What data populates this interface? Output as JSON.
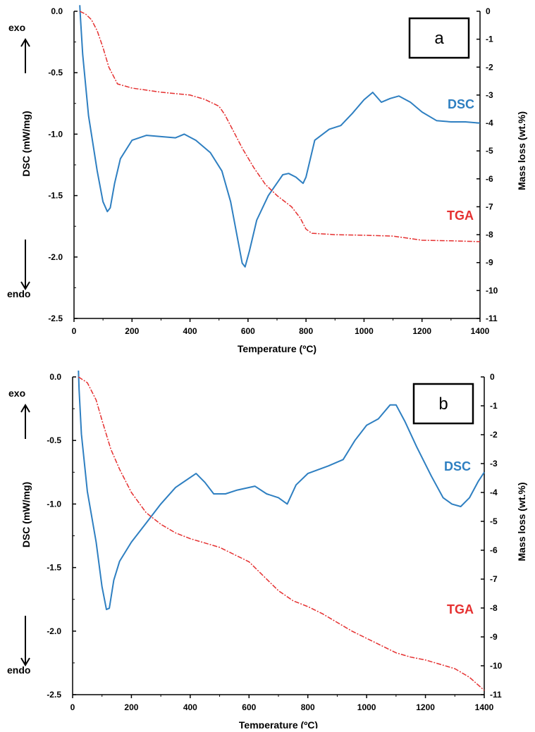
{
  "colors": {
    "dsc": "#2E7FC1",
    "tga": "#E53030",
    "axis": "#000000"
  },
  "chart_data": [
    {
      "type": "line",
      "panel_label": "a",
      "xlabel": "Temperature (ºC)",
      "ylabel_left": "DSC (mW/mg)",
      "ylabel_right": "Mass loss (wt.%)",
      "exo_label": "exo",
      "endo_label": "endo",
      "xlim": [
        0,
        1400
      ],
      "ylim_left": [
        -2.5,
        0.0
      ],
      "ylim_right": [
        -11,
        0
      ],
      "x_ticks": [
        "0",
        "200",
        "400",
        "600",
        "800",
        "1000",
        "1200",
        "1400"
      ],
      "y_left_ticks": [
        "0.0",
        "-0.5",
        "-1.0",
        "-1.5",
        "-2.0",
        "-2.5"
      ],
      "y_right_ticks": [
        "0",
        "-1",
        "-2",
        "-3",
        "-4",
        "-5",
        "-6",
        "-7",
        "-8",
        "-9",
        "-10",
        "-11"
      ],
      "grid": false,
      "series": [
        {
          "name": "DSC",
          "axis": "left",
          "x": [
            20,
            22,
            30,
            50,
            80,
            100,
            115,
            125,
            140,
            160,
            200,
            250,
            300,
            350,
            380,
            420,
            470,
            510,
            540,
            560,
            580,
            590,
            605,
            630,
            670,
            720,
            740,
            765,
            790,
            800,
            830,
            880,
            920,
            960,
            1000,
            1030,
            1060,
            1090,
            1120,
            1160,
            1200,
            1250,
            1300,
            1350,
            1400
          ],
          "y": [
            0.05,
            -0.05,
            -0.35,
            -0.85,
            -1.3,
            -1.55,
            -1.63,
            -1.6,
            -1.4,
            -1.2,
            -1.05,
            -1.01,
            -1.02,
            -1.03,
            -1.0,
            -1.05,
            -1.15,
            -1.3,
            -1.55,
            -1.8,
            -2.05,
            -2.08,
            -1.95,
            -1.7,
            -1.5,
            -1.33,
            -1.32,
            -1.35,
            -1.4,
            -1.35,
            -1.05,
            -0.96,
            -0.93,
            -0.83,
            -0.72,
            -0.66,
            -0.74,
            -0.71,
            -0.69,
            -0.74,
            -0.82,
            -0.89,
            -0.9,
            -0.9,
            -0.91
          ]
        },
        {
          "name": "TGA",
          "axis": "right",
          "x": [
            20,
            40,
            60,
            80,
            100,
            120,
            150,
            200,
            300,
            400,
            450,
            500,
            520,
            550,
            580,
            620,
            660,
            700,
            750,
            780,
            800,
            820,
            900,
            1000,
            1100,
            1200,
            1300,
            1400
          ],
          "y": [
            0,
            -0.1,
            -0.3,
            -0.7,
            -1.3,
            -2.0,
            -2.6,
            -2.75,
            -2.9,
            -3.0,
            -3.15,
            -3.4,
            -3.7,
            -4.3,
            -4.9,
            -5.6,
            -6.2,
            -6.6,
            -7.0,
            -7.4,
            -7.8,
            -7.95,
            -8.0,
            -8.02,
            -8.05,
            -8.2,
            -8.22,
            -8.25
          ]
        }
      ]
    },
    {
      "type": "line",
      "panel_label": "b",
      "xlabel": "Temperature (ºC)",
      "ylabel_left": "DSC (mW/mg)",
      "ylabel_right": "Mass loss (wt.%)",
      "exo_label": "exo",
      "endo_label": "endo",
      "xlim": [
        0,
        1400
      ],
      "ylim_left": [
        -2.5,
        0.0
      ],
      "ylim_right": [
        -11,
        0
      ],
      "x_ticks": [
        "0",
        "200",
        "400",
        "600",
        "800",
        "1000",
        "1200",
        "1400"
      ],
      "y_left_ticks": [
        "0.0",
        "-0.5",
        "-1.0",
        "-1.5",
        "-2.0",
        "-2.5"
      ],
      "y_right_ticks": [
        "0",
        "-1",
        "-2",
        "-3",
        "-4",
        "-5",
        "-6",
        "-7",
        "-8",
        "-9",
        "-10",
        "-11"
      ],
      "grid": false,
      "series": [
        {
          "name": "DSC",
          "axis": "left",
          "x": [
            20,
            22,
            30,
            50,
            80,
            100,
            115,
            125,
            140,
            160,
            200,
            250,
            300,
            350,
            420,
            450,
            480,
            520,
            560,
            620,
            660,
            700,
            730,
            760,
            800,
            870,
            920,
            960,
            1000,
            1040,
            1080,
            1100,
            1130,
            1170,
            1220,
            1260,
            1290,
            1320,
            1350,
            1380,
            1400
          ],
          "y": [
            0.05,
            -0.1,
            -0.45,
            -0.9,
            -1.3,
            -1.65,
            -1.83,
            -1.82,
            -1.6,
            -1.45,
            -1.3,
            -1.15,
            -1.0,
            -0.87,
            -0.76,
            -0.83,
            -0.92,
            -0.92,
            -0.89,
            -0.86,
            -0.92,
            -0.95,
            -1.0,
            -0.85,
            -0.76,
            -0.7,
            -0.65,
            -0.5,
            -0.38,
            -0.33,
            -0.22,
            -0.22,
            -0.35,
            -0.55,
            -0.78,
            -0.95,
            -1.0,
            -1.02,
            -0.95,
            -0.82,
            -0.75
          ]
        },
        {
          "name": "TGA",
          "axis": "right",
          "x": [
            20,
            50,
            80,
            100,
            130,
            160,
            200,
            250,
            300,
            350,
            400,
            500,
            600,
            650,
            700,
            750,
            800,
            850,
            900,
            950,
            1000,
            1050,
            1100,
            1150,
            1200,
            1250,
            1300,
            1350,
            1400
          ],
          "y": [
            0,
            -0.2,
            -0.8,
            -1.5,
            -2.5,
            -3.2,
            -4.0,
            -4.7,
            -5.1,
            -5.4,
            -5.6,
            -5.9,
            -6.4,
            -6.9,
            -7.4,
            -7.75,
            -7.95,
            -8.2,
            -8.5,
            -8.8,
            -9.05,
            -9.3,
            -9.55,
            -9.7,
            -9.8,
            -9.95,
            -10.1,
            -10.4,
            -10.85
          ]
        }
      ]
    }
  ]
}
